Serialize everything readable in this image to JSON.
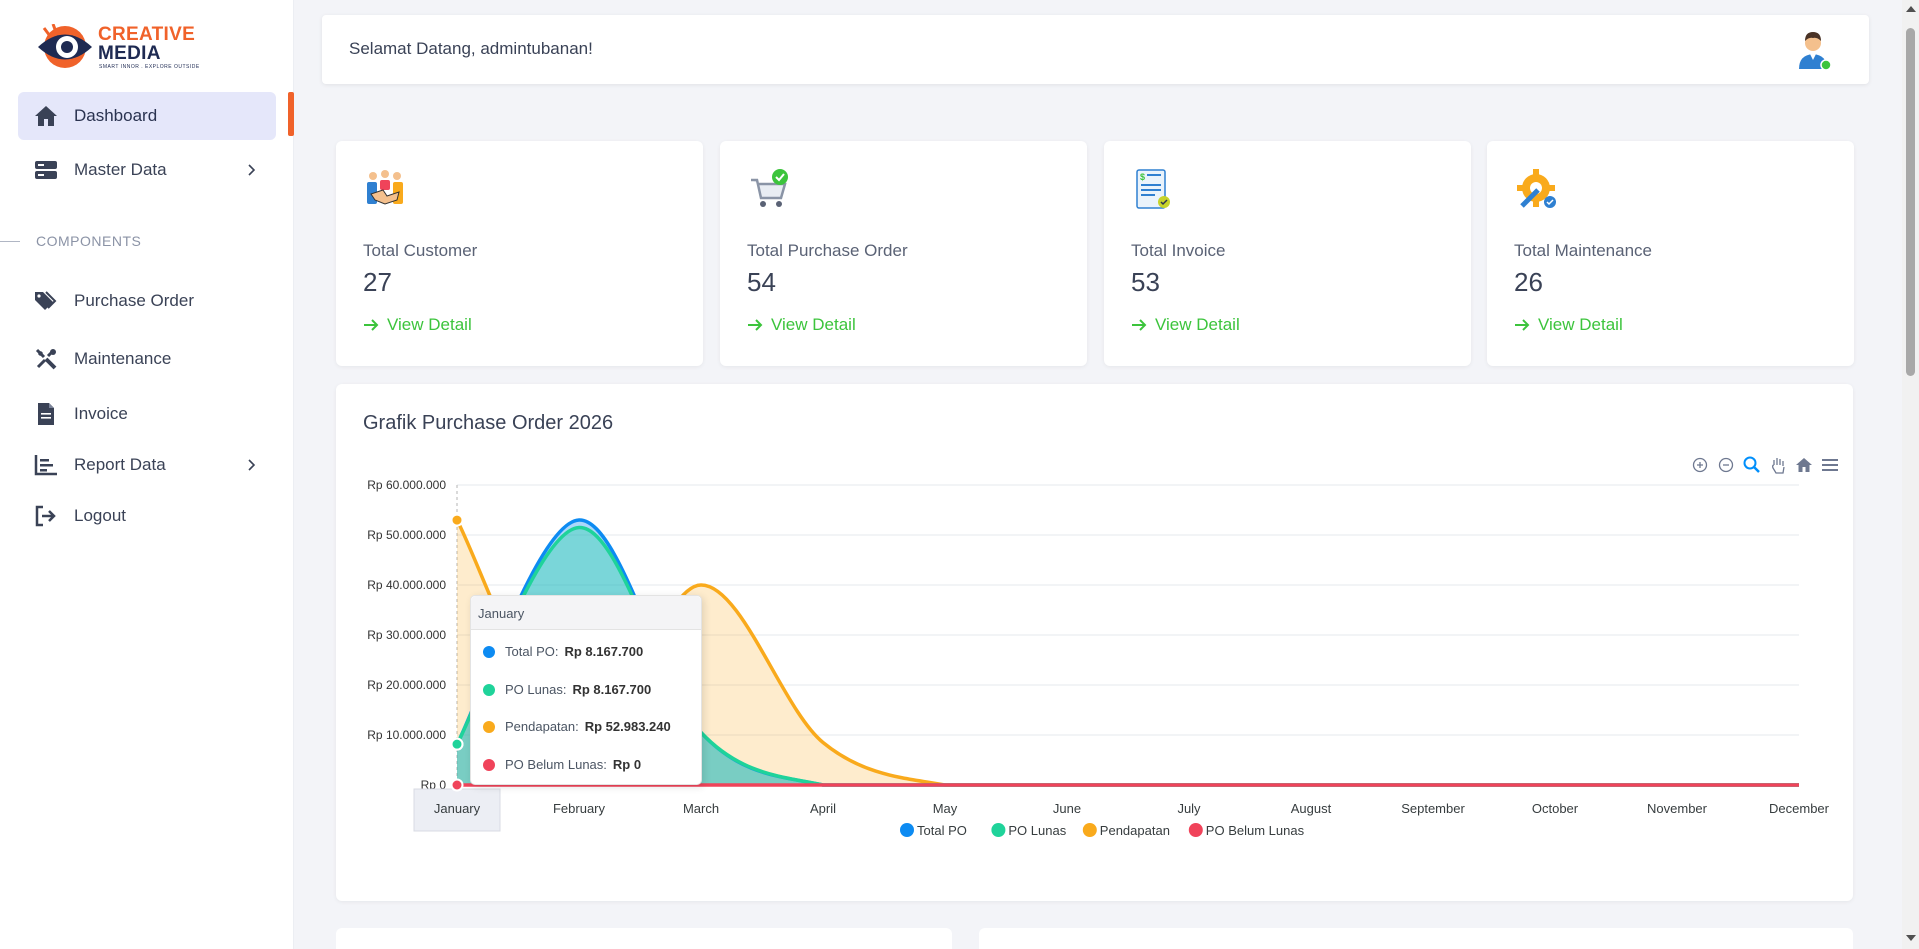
{
  "brand": {
    "line1": "CREATIVE",
    "line2": "MEDIA",
    "tagline": "SMART INNOR . EXPLORE OUTSIDE",
    "colors": {
      "primary": "#f0622a",
      "dark": "#1e2a52"
    }
  },
  "sidebar": {
    "items": [
      {
        "label": "Dashboard",
        "icon": "home-icon",
        "active": true
      },
      {
        "label": "Master Data",
        "icon": "server-icon",
        "has_submenu": true
      }
    ],
    "section_label": "COMPONENTS",
    "components": [
      {
        "label": "Purchase Order",
        "icon": "tags-icon"
      },
      {
        "label": "Maintenance",
        "icon": "tools-icon"
      },
      {
        "label": "Invoice",
        "icon": "file-icon"
      },
      {
        "label": "Report Data",
        "icon": "chart-bars-icon",
        "has_submenu": true
      },
      {
        "label": "Logout",
        "icon": "logout-icon"
      }
    ]
  },
  "header": {
    "welcome": "Selamat Datang, admintubanan!"
  },
  "cards": [
    {
      "label": "Total Customer",
      "value": "27",
      "link": "View Detail",
      "icon": "handshake-icon"
    },
    {
      "label": "Total Purchase Order",
      "value": "54",
      "link": "View Detail",
      "icon": "cart-check-icon"
    },
    {
      "label": "Total Invoice",
      "value": "53",
      "link": "View Detail",
      "icon": "invoice-icon"
    },
    {
      "label": "Total Maintenance",
      "value": "26",
      "link": "View Detail",
      "icon": "gear-wrench-icon"
    }
  ],
  "chart": {
    "title": "Grafik Purchase Order 2026",
    "toolbar": [
      "zoom-in-icon",
      "zoom-out-icon",
      "zoom-select-icon",
      "pan-icon",
      "reset-home-icon",
      "menu-icon"
    ]
  },
  "chart_data": {
    "type": "area",
    "title": "Grafik Purchase Order 2026",
    "categories": [
      "January",
      "February",
      "March",
      "April",
      "May",
      "June",
      "July",
      "August",
      "September",
      "October",
      "November",
      "December"
    ],
    "y_tick_labels": [
      "Rp 0",
      "Rp 10.000.000",
      "Rp 20.000.000",
      "Rp 30.000.000",
      "Rp 40.000.000",
      "Rp 50.000.000",
      "Rp 60.000.000"
    ],
    "ylim": [
      0,
      60000000
    ],
    "grid": true,
    "legend_position": "bottom",
    "series": [
      {
        "name": "Total PO",
        "color": "#0d8bf2",
        "values": [
          8167700,
          53000000,
          10500000,
          0,
          0,
          0,
          0,
          0,
          0,
          0,
          0,
          0
        ]
      },
      {
        "name": "PO Lunas",
        "color": "#1fd39a",
        "values": [
          8167700,
          51500000,
          10500000,
          0,
          0,
          0,
          0,
          0,
          0,
          0,
          0,
          0
        ]
      },
      {
        "name": "Pendapatan",
        "color": "#f9aa1c",
        "values": [
          52983240,
          8000000,
          40000000,
          8500000,
          0,
          0,
          0,
          0,
          0,
          0,
          0,
          0
        ]
      },
      {
        "name": "PO Belum Lunas",
        "color": "#f0435a",
        "values": [
          0,
          0,
          0,
          0,
          0,
          0,
          0,
          0,
          0,
          0,
          0,
          0
        ]
      }
    ],
    "tooltip": {
      "title": "January",
      "rows": [
        {
          "label": "Total PO:",
          "value": "Rp 8.167.700"
        },
        {
          "label": "PO Lunas:",
          "value": "Rp 8.167.700"
        },
        {
          "label": "Pendapatan:",
          "value": "Rp 52.983.240"
        },
        {
          "label": "PO Belum Lunas:",
          "value": "Rp 0"
        }
      ]
    }
  }
}
